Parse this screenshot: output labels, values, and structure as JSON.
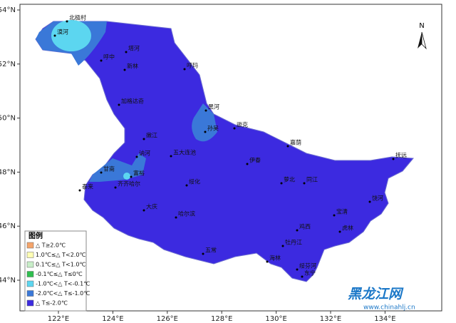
{
  "map": {
    "longitude_labels": [
      {
        "value": 122,
        "label": "122°E"
      },
      {
        "value": 124,
        "label": "124°E"
      },
      {
        "value": 126,
        "label": "126°E"
      },
      {
        "value": 128,
        "label": "128°E"
      },
      {
        "value": 130,
        "label": "130°E"
      },
      {
        "value": 132,
        "label": "132°E"
      },
      {
        "value": 134,
        "label": "134°E"
      }
    ],
    "latitude_labels": [
      {
        "value": 44,
        "label": "44°N"
      },
      {
        "value": 46,
        "label": "46°N"
      },
      {
        "value": 48,
        "label": "48°N"
      },
      {
        "value": 50,
        "label": "50°N"
      },
      {
        "value": 52,
        "label": "52°N"
      },
      {
        "value": 54,
        "label": "54°N"
      }
    ],
    "north_label": "N",
    "places": [
      "北极村",
      "漠河",
      "呼中",
      "塔河",
      "新林",
      "呼玛",
      "加格达奇",
      "黑河",
      "孙吴",
      "逊克",
      "嘉荫",
      "抚远",
      "嫩江",
      "讷河",
      "五大连池",
      "甘南",
      "富裕",
      "齐齐哈尔",
      "伊春",
      "萝北",
      "同江",
      "饶河",
      "宝清",
      "虎林",
      "鸡西",
      "绥芬河",
      "东宁",
      "海林",
      "牡丹江",
      "五常",
      "哈尔滨",
      "绥化",
      "大庆",
      "泰来"
    ],
    "legend": {
      "title": "图例",
      "items": [
        {
          "label": "△ T≥2.0℃",
          "color": "#f4a46a"
        },
        {
          "label": "1.0℃≤△ T<2.0℃",
          "color": "#ffffb4"
        },
        {
          "label": "0.1℃≤△ T<1.0℃",
          "color": "#c8eec8"
        },
        {
          "label": "-0.1℃≤△ T≤0℃",
          "color": "#2fbf4f"
        },
        {
          "label": "-1.0℃<△ T<-0.1℃",
          "color": "#5cd6f0"
        },
        {
          "label": "-2.0℃<△ T≤-1.0℃",
          "color": "#3a78d8"
        },
        {
          "label": "△ T≤-2.0℃",
          "color": "#3c2ae0"
        }
      ]
    },
    "logo": {
      "name": "黑龙江网",
      "url": "www.chinahlj.cn"
    }
  }
}
